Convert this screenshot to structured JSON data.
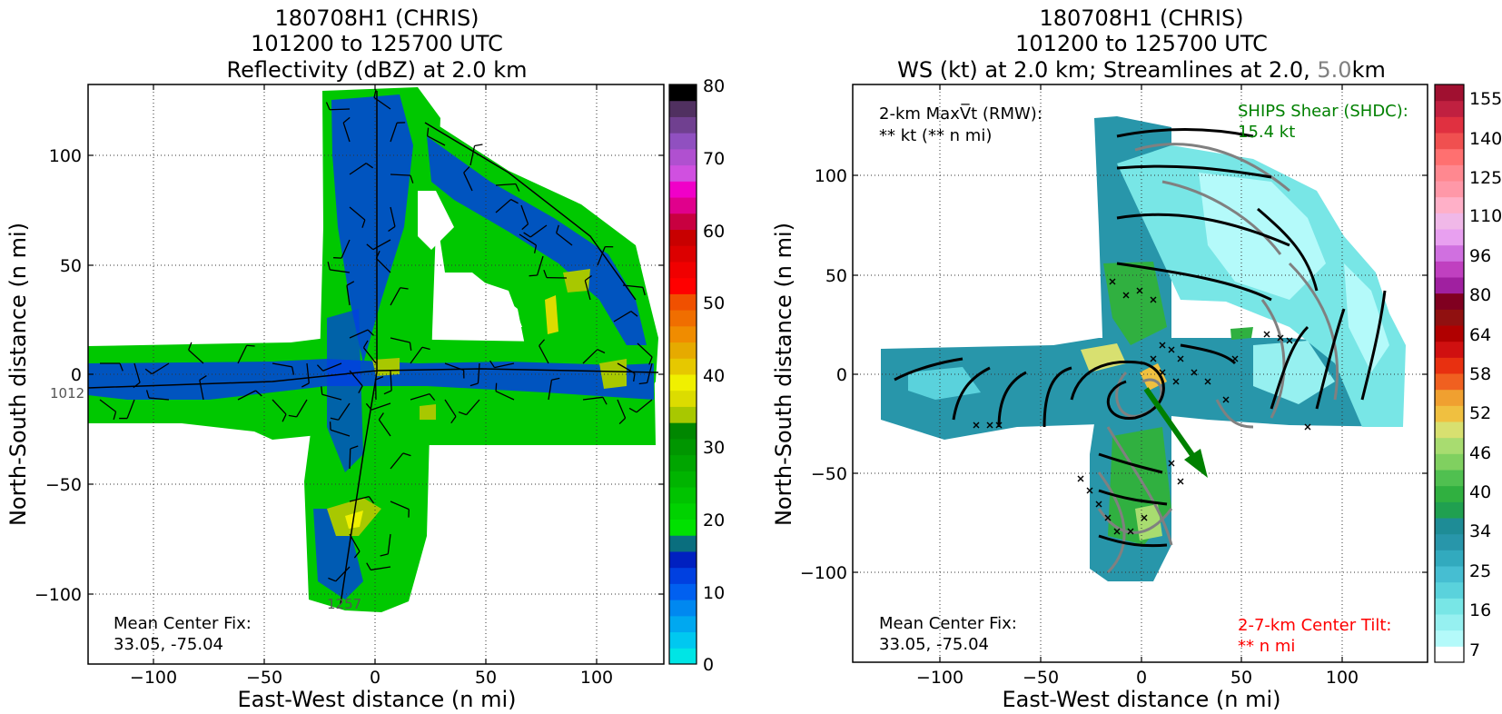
{
  "left": {
    "title_lines": [
      "180708H1 (CHRIS)",
      "101200 to 125700 UTC",
      "Reflectivity (dBZ) at 2.0 km"
    ],
    "xlabel": "East-West distance (n mi)",
    "ylabel": "North-South distance (n mi)",
    "xticks": [
      "−100",
      "−50",
      "0",
      "50",
      "100"
    ],
    "yticks": [
      "100",
      "50",
      "0",
      "−50",
      "−100"
    ],
    "center_fix_lines": [
      "Mean Center Fix:",
      "33.05, -75.04"
    ],
    "track_labels": [
      "1012",
      "1257"
    ],
    "colorbar_labels": [
      "80",
      "70",
      "60",
      "50",
      "40",
      "30",
      "20",
      "10",
      "0"
    ],
    "colors": [
      "#00e5e5",
      "#00c8f0",
      "#00a8f0",
      "#0088f0",
      "#0060f0",
      "#0040e0",
      "#0020c0",
      "#0a6e7e",
      "#00e100",
      "#00d200",
      "#00c300",
      "#00b400",
      "#00a500",
      "#009600",
      "#008700",
      "#a8c800",
      "#dcdc00",
      "#f0f000",
      "#e6c800",
      "#e6aa00",
      "#f08c00",
      "#f06e00",
      "#f05000",
      "#ff0000",
      "#f00000",
      "#dc0000",
      "#c80000",
      "#c80040",
      "#e0008c",
      "#f000c8",
      "#d050e0",
      "#b050d0",
      "#9050c0",
      "#704090",
      "#503060",
      "#000000"
    ]
  },
  "right": {
    "title_lines": [
      "180708H1 (CHRIS)",
      "101200 to 125700 UTC"
    ],
    "title_line3_parts": [
      "WS (kt) at 2.0 km; Streamlines at 2.0, ",
      "5.0",
      "km"
    ],
    "xlabel": "East-West distance (n mi)",
    "ylabel": "North-South distance (n mi)",
    "xticks": [
      "−100",
      "−50",
      "0",
      "50",
      "100"
    ],
    "yticks": [
      "100",
      "50",
      "0",
      "−50",
      "−100"
    ],
    "maxvt_lines": [
      "2-km MaxV̅t (RMW):",
      "** kt (** n mi)"
    ],
    "shear_lines": [
      "SHIPS Shear (SHDC):",
      "15.4 kt"
    ],
    "center_fix_lines": [
      "Mean Center Fix:",
      "33.05, -75.04"
    ],
    "tilt_lines": [
      "2-7-km Center Tilt:",
      "** n mi"
    ],
    "colorbar_labels": [
      "155",
      "140",
      "125",
      "110",
      "96",
      "80",
      "64",
      "58",
      "52",
      "46",
      "40",
      "34",
      "25",
      "16",
      "7"
    ],
    "colors": [
      "#ffffff",
      "#b4fafa",
      "#96f0f0",
      "#78e6e6",
      "#5ad2dc",
      "#46bed2",
      "#32aabe",
      "#2896aa",
      "#1e8c96",
      "#20a050",
      "#30b040",
      "#50c050",
      "#80d060",
      "#a8dc70",
      "#d8e070",
      "#f0c040",
      "#f0a030",
      "#f06020",
      "#e83010",
      "#d01010",
      "#b00000",
      "#901010",
      "#800020",
      "#a020a0",
      "#c040c0",
      "#d070e0",
      "#e8a0f0",
      "#f0b8e8",
      "#ffb0c8",
      "#ff98a8",
      "#ff8890",
      "#ff7070",
      "#f05050",
      "#e03040",
      "#c02040",
      "#a01030"
    ],
    "shear_color": "#008000",
    "tilt_color": "#ff0000",
    "grey_color": "#808080"
  },
  "chart_data": [
    {
      "type": "heatmap",
      "title": "180708H1 (CHRIS) 101200 to 125700 UTC Reflectivity (dBZ) at 2.0 km",
      "xlabel": "East-West distance (n mi)",
      "ylabel": "North-South distance (n mi)",
      "xlim": [
        -132,
        132
      ],
      "ylim": [
        -132,
        132
      ],
      "grid": true,
      "colorbar": {
        "label_values": [
          0,
          10,
          20,
          30,
          40,
          50,
          60,
          70,
          80
        ]
      },
      "mean_center_fix": [
        33.05,
        -75.04
      ]
    },
    {
      "type": "heatmap",
      "title": "180708H1 (CHRIS) 101200 to 125700 UTC WS (kt) at 2.0 km; Streamlines at 2.0, 5.0 km",
      "xlabel": "East-West distance (n mi)",
      "ylabel": "North-South distance (n mi)",
      "xlim": [
        -132,
        132
      ],
      "ylim": [
        -145,
        145
      ],
      "grid": true,
      "colorbar": {
        "label_values": [
          7,
          16,
          25,
          34,
          40,
          46,
          52,
          58,
          64,
          80,
          96,
          110,
          125,
          140,
          155
        ]
      },
      "ships_shear_kt": 15.4,
      "mean_center_fix": [
        33.05,
        -75.04
      ]
    }
  ]
}
